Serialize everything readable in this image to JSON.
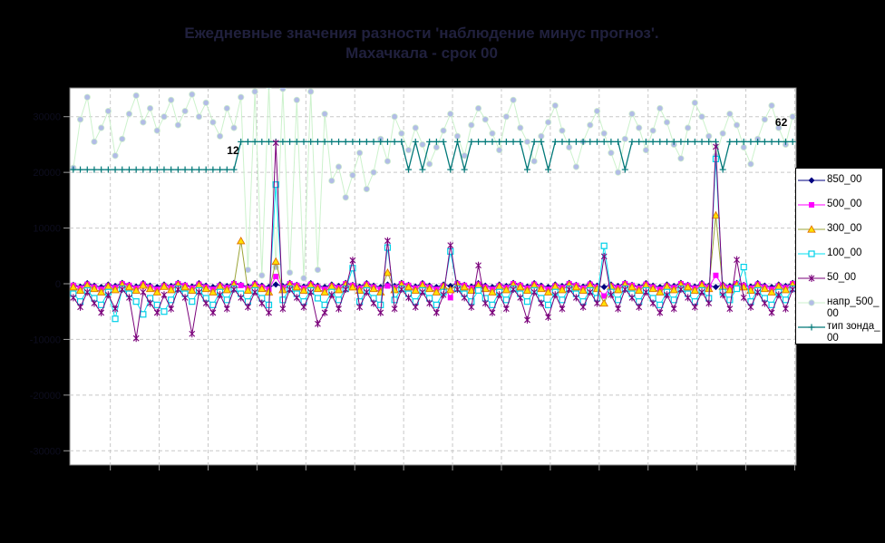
{
  "title": {
    "line1": "Ежедневные значения разности 'наблюдение минус прогноз'.",
    "line2": "Махачкала - срок 00"
  },
  "colors": {
    "background": "#000000",
    "plot_background": "#FFFFFF",
    "plot_border": "#7F7F7F",
    "gridline": "#C8C8C8",
    "tick": "#9C9C9C",
    "axis_labels": "#0D0D1F",
    "annotation_text": "#000000",
    "title_text": "#20203D",
    "legend_background": "#FFFFFF",
    "legend_border": "#000000"
  },
  "chart_data": {
    "type": "line",
    "title": "Ежедневные значения разности 'наблюдение минус прогноз'. Махачкала - срок 00",
    "xlabel": "",
    "ylabel": "",
    "x_unit": "day-index",
    "xlim": [
      0,
      104
    ],
    "ylim": [
      -32560,
      35164
    ],
    "grid": true,
    "legend_position": "right",
    "y_ticks": [
      {
        "value": 30000,
        "label": "30000"
      },
      {
        "value": 20000,
        "label": "20000"
      },
      {
        "value": 10000,
        "label": "10000"
      },
      {
        "value": 0,
        "label": "0"
      },
      {
        "value": -10000,
        "label": "-10000"
      },
      {
        "value": -20000,
        "label": "-20000"
      },
      {
        "value": -30000,
        "label": "-30000"
      }
    ],
    "x_grid": {
      "start_day": 5.3,
      "step_days": 7,
      "count": 15
    },
    "annotations": [
      {
        "text": "12",
        "day": 22,
        "value": 23300
      },
      {
        "text": "62",
        "day": 100.5,
        "value": 28300
      }
    ],
    "series": [
      {
        "name": "напр_500_00",
        "line_color": "#CCF2CC",
        "line_width": 1,
        "marker": "circle",
        "marker_fill": "#B2BCE6",
        "marker_stroke": "#CFEECF",
        "values": [
          20800,
          29500,
          33500,
          25500,
          28000,
          31000,
          23000,
          26000,
          30500,
          33800,
          29000,
          31500,
          27500,
          30000,
          33000,
          28500,
          31000,
          34000,
          30000,
          32500,
          29000,
          26500,
          31500,
          28000,
          33500,
          2500,
          34500,
          1500,
          35500,
          3000,
          35000,
          2000,
          33000,
          1000,
          34500,
          2500,
          30500,
          18500,
          21000,
          15500,
          19500,
          23500,
          17000,
          20000,
          26000,
          22000,
          30000,
          27000,
          24000,
          28000,
          25000,
          21500,
          24500,
          27500,
          30500,
          26500,
          23000,
          28500,
          31500,
          29500,
          27000,
          24000,
          30000,
          33000,
          28000,
          25500,
          22000,
          26500,
          29000,
          32000,
          27500,
          24500,
          21000,
          25500,
          28500,
          31000,
          27000,
          23500,
          20000,
          26000,
          30500,
          28000,
          24000,
          27500,
          31500,
          29000,
          25000,
          22500,
          28000,
          32500,
          30000,
          26500,
          23000,
          27000,
          30500,
          28500,
          24500,
          21500,
          26000,
          29500,
          32000,
          28000,
          25000,
          30000
        ]
      },
      {
        "name": "тип зонда_00",
        "line_color": "#007878",
        "line_width": 1.3,
        "marker": "plus",
        "marker_fill": "#007878",
        "marker_stroke": "#007878",
        "values": [
          20500,
          20500,
          20500,
          20500,
          20500,
          20500,
          20500,
          20500,
          20500,
          20500,
          20500,
          20500,
          20500,
          20500,
          20500,
          20500,
          20500,
          20500,
          20500,
          20500,
          20500,
          20500,
          20500,
          20500,
          25500,
          25500,
          25500,
          25500,
          25500,
          25500,
          25500,
          25500,
          25500,
          25500,
          25500,
          25500,
          25500,
          25500,
          25500,
          25500,
          25500,
          25500,
          25500,
          25500,
          25500,
          25500,
          25500,
          25500,
          20500,
          25500,
          20500,
          25500,
          25500,
          25500,
          20500,
          25500,
          20500,
          25500,
          25500,
          25500,
          25500,
          25500,
          25500,
          25500,
          25500,
          20500,
          25500,
          25500,
          20500,
          25500,
          25500,
          25500,
          25500,
          25500,
          25500,
          25500,
          25500,
          25500,
          25500,
          20500,
          25500,
          25500,
          25500,
          25500,
          25500,
          25500,
          25500,
          25500,
          25500,
          25500,
          25500,
          25500,
          25500,
          20500,
          25500,
          25500,
          25500,
          25500,
          25500,
          25500,
          25500,
          25500,
          25500,
          25500
        ]
      },
      {
        "name": "850_00",
        "line_color": "#000080",
        "line_width": 1,
        "marker": "diamond",
        "marker_fill": "#000080",
        "marker_stroke": "#000080",
        "values": [
          -200,
          -500,
          100,
          -350,
          -600,
          -150,
          -400,
          150,
          -200,
          -500,
          100,
          -350,
          -600,
          -150,
          -400,
          150,
          -200,
          -500,
          100,
          -350,
          -600,
          -150,
          -400,
          150,
          -200,
          -500,
          100,
          -350,
          -600,
          -150,
          -400,
          150,
          -200,
          -500,
          100,
          -350,
          -600,
          -150,
          -400,
          150,
          -200,
          -500,
          100,
          -350,
          -600,
          -150,
          -400,
          150,
          -200,
          -500,
          100,
          -350,
          -600,
          -150,
          -400,
          150,
          -200,
          -500,
          100,
          -350,
          -600,
          -150,
          -400,
          150,
          -200,
          -500,
          100,
          -350,
          -600,
          -150,
          -400,
          150,
          -200,
          -500,
          100,
          -350,
          -600,
          -150,
          -400,
          150,
          -200,
          -500,
          100,
          -350,
          -600,
          -150,
          -400,
          150,
          -200,
          -500,
          100,
          -350,
          -600,
          -150,
          -400,
          150,
          -200,
          -500,
          100,
          -350,
          -600,
          -150,
          -400,
          150
        ]
      },
      {
        "name": "500_00",
        "line_color": "#FF00FF",
        "line_width": 1,
        "marker": "square",
        "marker_fill": "#FF00FF",
        "marker_stroke": "#FF00FF",
        "values": [
          -300,
          -800,
          -100,
          -600,
          -1000,
          -400,
          -700,
          0,
          -300,
          -800,
          -100,
          -600,
          -1000,
          -400,
          -700,
          0,
          -300,
          -800,
          -100,
          -600,
          -1000,
          -400,
          -700,
          0,
          -300,
          -800,
          -100,
          -600,
          -1000,
          1300,
          -700,
          0,
          -300,
          -800,
          -100,
          -600,
          -1000,
          -400,
          -700,
          0,
          -300,
          -800,
          -100,
          -600,
          -1000,
          -400,
          -700,
          0,
          -300,
          -800,
          -100,
          -600,
          -1000,
          -400,
          -2500,
          0,
          -300,
          -800,
          -100,
          -600,
          -1000,
          -400,
          -700,
          0,
          -300,
          -800,
          -100,
          -600,
          -1000,
          -400,
          -700,
          0,
          -300,
          -800,
          -100,
          -600,
          -2200,
          -400,
          -700,
          0,
          -300,
          -800,
          -100,
          -600,
          -1000,
          -400,
          -700,
          0,
          -300,
          -800,
          -100,
          -600,
          1500,
          -400,
          -700,
          0,
          -300,
          -800,
          -100,
          -600,
          -1000,
          -400,
          -700,
          0
        ]
      },
      {
        "name": "300_00",
        "line_color": "#9BA438",
        "line_width": 1,
        "marker": "triangle",
        "marker_fill": "#FFE000",
        "marker_stroke": "#E07000",
        "values": [
          -600,
          -1200,
          -300,
          -900,
          -1500,
          -500,
          -1100,
          -200,
          -600,
          -1200,
          -300,
          -900,
          -1500,
          -500,
          -1100,
          -200,
          -600,
          -1200,
          -300,
          -900,
          -1500,
          -500,
          -1100,
          -200,
          7700,
          -1200,
          -300,
          -900,
          -1500,
          4000,
          -1100,
          -200,
          -600,
          -1200,
          -300,
          -900,
          -1500,
          -500,
          -1100,
          -200,
          -600,
          -1200,
          -300,
          -900,
          -1500,
          2000,
          -1100,
          -200,
          -600,
          -1200,
          -300,
          -900,
          -1500,
          -500,
          -1100,
          -200,
          -600,
          -1200,
          -300,
          -900,
          -1500,
          -500,
          -1100,
          -200,
          -600,
          -1200,
          -300,
          -900,
          -1500,
          -500,
          -1100,
          -200,
          -600,
          -1200,
          -300,
          -900,
          -3500,
          -500,
          -1100,
          -200,
          -600,
          -1200,
          -300,
          -900,
          -1500,
          -500,
          -1100,
          -200,
          -600,
          -1200,
          -300,
          -900,
          12300,
          -500,
          -1100,
          -200,
          -600,
          -1200,
          -300,
          -900,
          -1500,
          -500,
          -1100,
          -200
        ]
      },
      {
        "name": "100_00",
        "line_color": "#00E0F0",
        "line_width": 1,
        "marker": "square-open",
        "marker_fill": "#FFFFFF",
        "marker_stroke": "#00D0E8",
        "values": [
          -1800,
          -3200,
          -1200,
          -2600,
          -3800,
          -1500,
          -6300,
          -900,
          -1800,
          -3200,
          -5500,
          -2600,
          -3800,
          -5000,
          -2900,
          -900,
          -1800,
          -3200,
          -1200,
          -2600,
          -3800,
          -1500,
          -2900,
          -900,
          -1800,
          -3200,
          -1200,
          -2600,
          -3800,
          17800,
          -2900,
          -900,
          -1800,
          -3200,
          -1200,
          -2600,
          -3800,
          -1500,
          -2900,
          -900,
          2800,
          -3200,
          -1200,
          -2600,
          -3800,
          6500,
          -2900,
          -900,
          -1800,
          -3200,
          -1200,
          -2600,
          -3800,
          -1500,
          5800,
          -900,
          -1800,
          -3200,
          -1200,
          -2600,
          -3800,
          -1500,
          -2900,
          -900,
          -1800,
          -3200,
          -1200,
          -2600,
          -3800,
          -1500,
          -2900,
          -900,
          -1800,
          -3200,
          -1200,
          -2600,
          6800,
          -1500,
          -2900,
          -900,
          -1800,
          -3200,
          -1200,
          -2600,
          -3800,
          -1500,
          -2900,
          -900,
          -1800,
          -3200,
          -1200,
          -2600,
          22400,
          -1500,
          -2900,
          -900,
          3000,
          -3200,
          -1200,
          -2600,
          -3800,
          -1500,
          -2900,
          -900
        ]
      },
      {
        "name": "50_00",
        "line_color": "#7A007A",
        "line_width": 1,
        "marker": "asterisk",
        "marker_fill": "#7A007A",
        "marker_stroke": "#7A007A",
        "values": [
          -2500,
          -4200,
          -1500,
          -3500,
          -5200,
          -2000,
          -4500,
          -1000,
          -2500,
          -9800,
          -1500,
          -3500,
          -5200,
          -2000,
          -4500,
          -1000,
          -2500,
          -9000,
          -1500,
          -3500,
          -5200,
          -2000,
          -4500,
          -1000,
          -2500,
          -4200,
          -1500,
          -3500,
          -5200,
          25300,
          -4500,
          -1000,
          -2500,
          -4200,
          -1500,
          -7200,
          -5200,
          -2000,
          -4500,
          -1000,
          4200,
          -4200,
          -1500,
          -3500,
          -5200,
          7700,
          -4500,
          -1000,
          -2500,
          -4200,
          -1500,
          -3500,
          -5200,
          -2000,
          6900,
          -1000,
          -2500,
          -4200,
          3300,
          -3500,
          -5200,
          -2000,
          -4500,
          -1000,
          -2500,
          -6500,
          -1500,
          -3500,
          -6000,
          -2000,
          -4500,
          -1000,
          -2500,
          -4200,
          -1500,
          -3500,
          4900,
          -2000,
          -4500,
          -1000,
          -2500,
          -4200,
          -1500,
          -3500,
          -5200,
          -2000,
          -4500,
          -1000,
          -2500,
          -4200,
          -1500,
          -3500,
          24600,
          -2000,
          -4500,
          4300,
          -2500,
          -4200,
          -1500,
          -3500,
          -5200,
          -2000,
          -4500,
          -1000
        ]
      }
    ]
  },
  "legend": {
    "items": [
      "850_00",
      "500_00",
      "300_00",
      "100_00",
      "50_00",
      "напр_500_00",
      "тип зонда_00"
    ]
  }
}
